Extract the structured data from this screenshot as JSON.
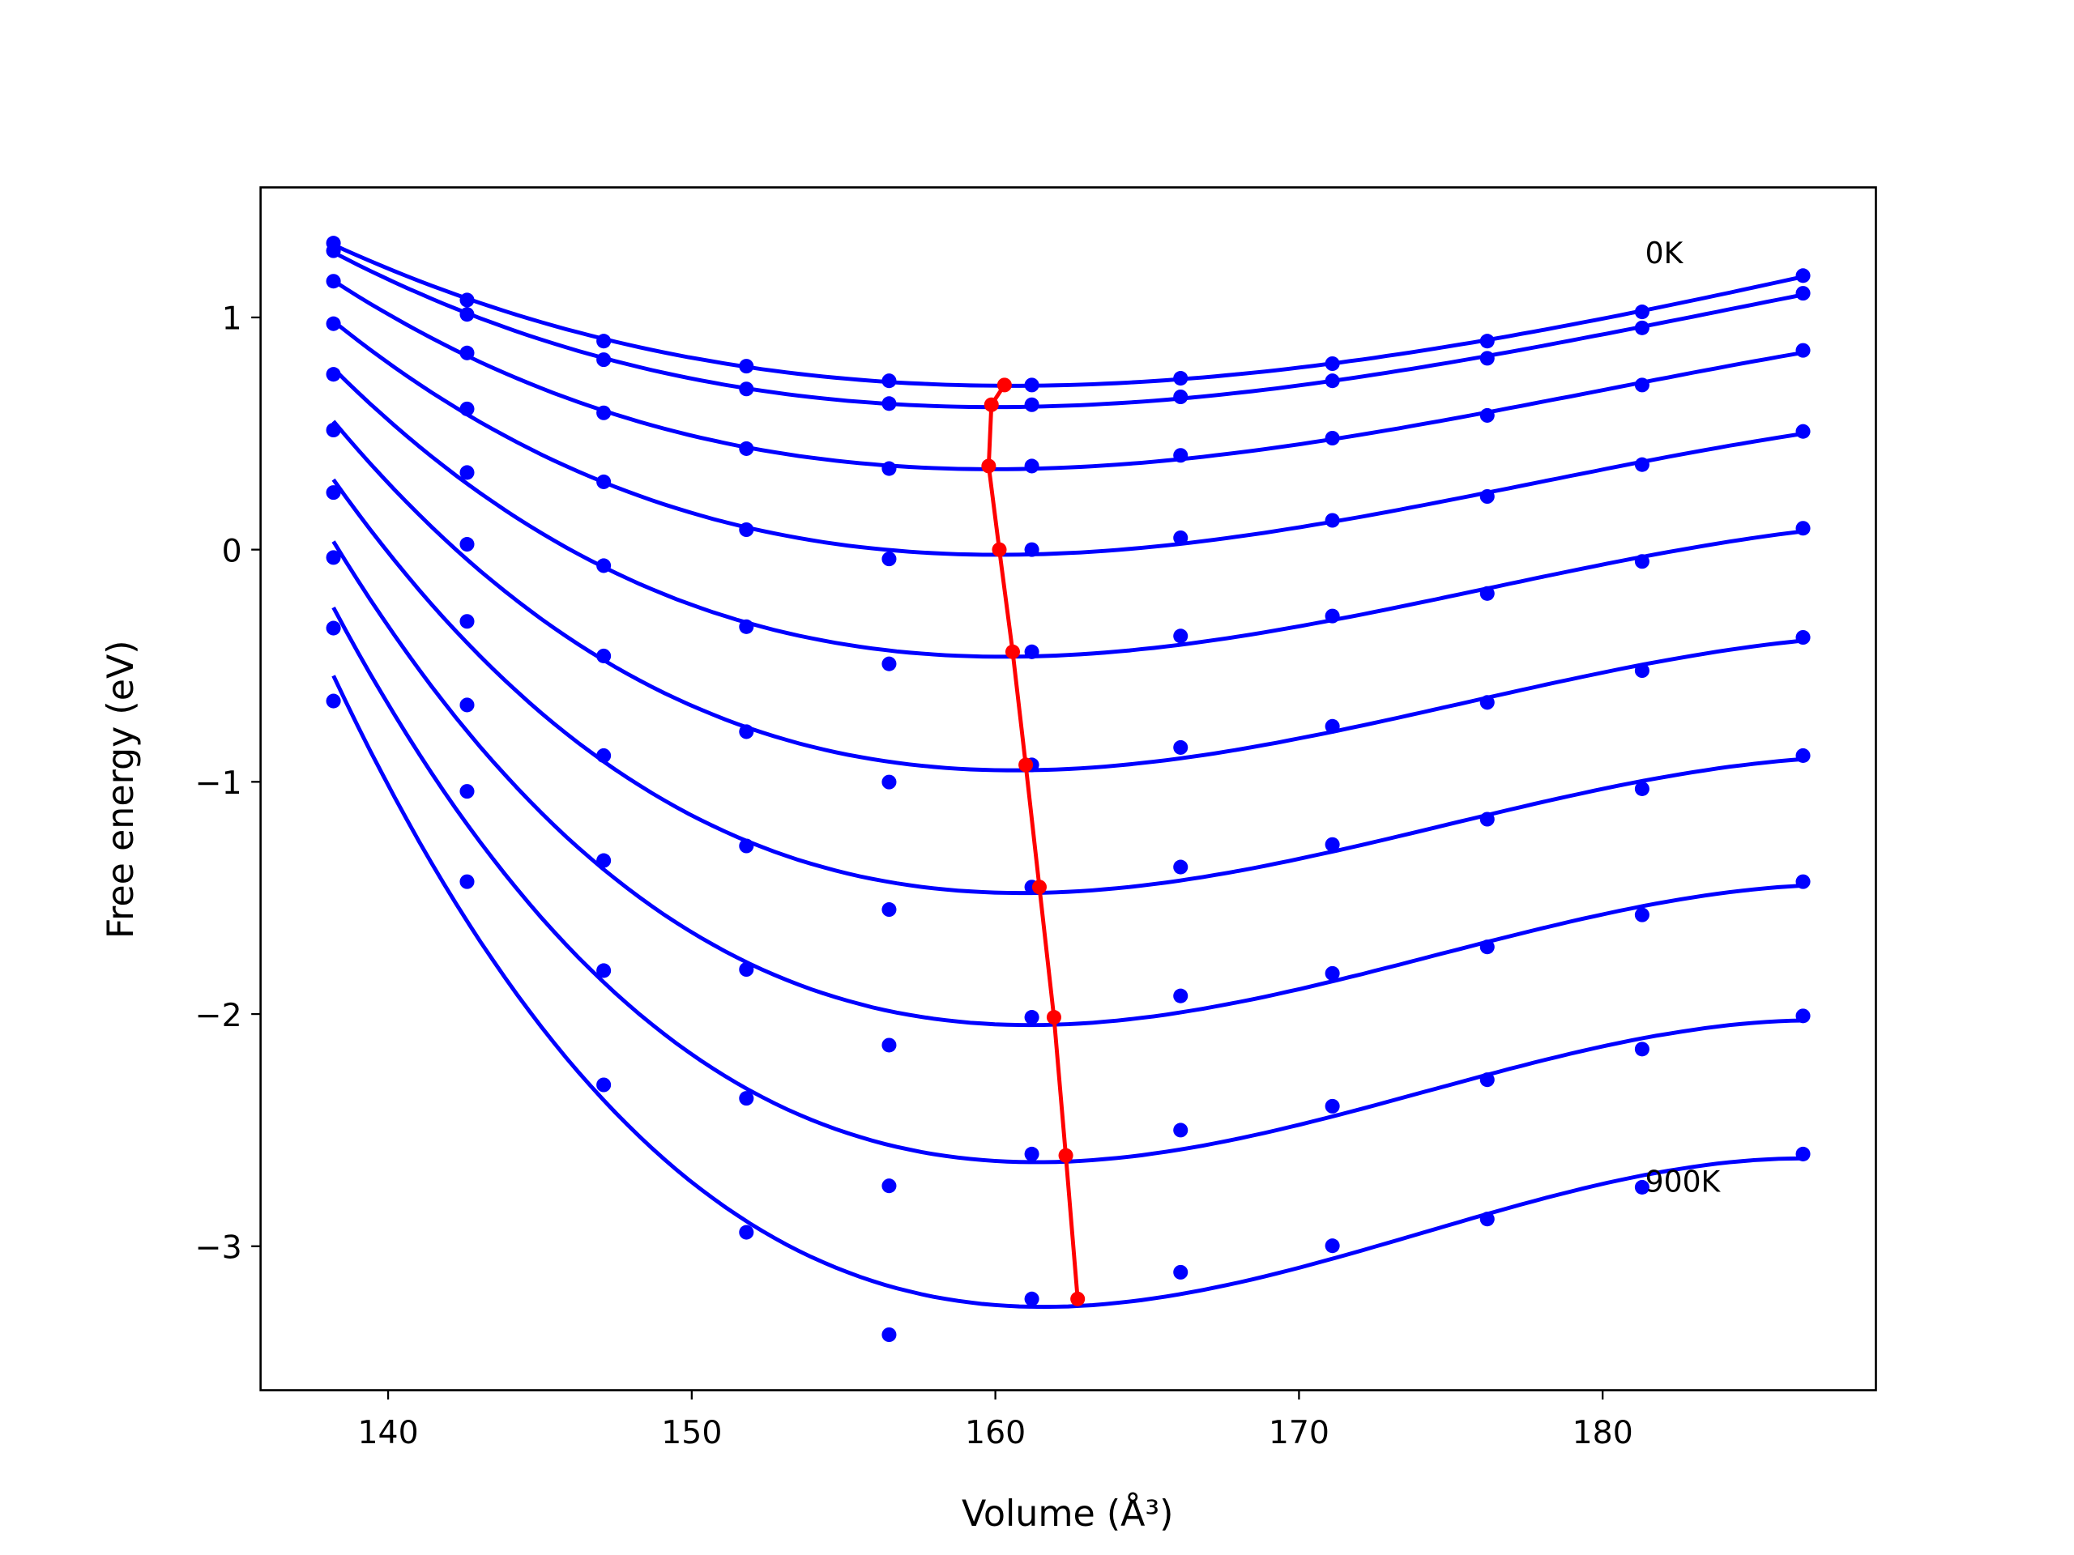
{
  "chart_data": {
    "type": "scatter",
    "title": "",
    "xlabel": "Volume (Å³)",
    "ylabel": "Free energy (eV)",
    "xlim": [
      135.8,
      189.0
    ],
    "ylim": [
      -3.62,
      1.56
    ],
    "xticks": [
      140,
      150,
      160,
      170,
      180
    ],
    "yticks": [
      -3,
      -2,
      -1,
      0,
      1
    ],
    "xtick_labels": [
      "140",
      "150",
      "160",
      "170",
      "180"
    ],
    "ytick_labels": [
      "−3",
      "−2",
      "−1",
      "0",
      "1"
    ],
    "grid": false,
    "colors": {
      "data": "#0000ff",
      "fit": "#0000ff",
      "minimum": "#ff0000"
    },
    "annotations": [
      {
        "text": "0K",
        "x": 181.4,
        "y": 1.28
      },
      {
        "text": "900K",
        "x": 181.4,
        "y": -2.72
      }
    ],
    "x": [
      138.2,
      142.6,
      147.1,
      151.8,
      156.5,
      161.2,
      166.1,
      171.1,
      176.2,
      181.3,
      186.6
    ],
    "series": [
      {
        "values": [
          1.32,
          1.075,
          0.898,
          0.79,
          0.727,
          0.709,
          0.738,
          0.801,
          0.898,
          1.024,
          1.18
        ]
      },
      {
        "values": [
          1.287,
          1.013,
          0.818,
          0.692,
          0.629,
          0.624,
          0.658,
          0.727,
          0.824,
          0.955,
          1.104
        ]
      },
      {
        "values": [
          1.156,
          0.847,
          0.589,
          0.435,
          0.349,
          0.36,
          0.406,
          0.48,
          0.578,
          0.709,
          0.858
        ]
      },
      {
        "values": [
          0.973,
          0.606,
          0.292,
          0.086,
          -0.04,
          0.0,
          0.051,
          0.126,
          0.229,
          0.366,
          0.509
        ]
      },
      {
        "values": [
          0.755,
          0.332,
          -0.069,
          -0.332,
          -0.492,
          -0.44,
          -0.372,
          -0.286,
          -0.189,
          -0.051,
          0.092
        ]
      },
      {
        "values": [
          0.515,
          0.023,
          -0.458,
          -0.784,
          -1.001,
          -0.927,
          -0.852,
          -0.761,
          -0.658,
          -0.521,
          -0.378
        ]
      },
      {
        "values": [
          0.246,
          -0.309,
          -0.887,
          -1.276,
          -1.55,
          -1.453,
          -1.367,
          -1.27,
          -1.161,
          -1.03,
          -0.887
        ]
      },
      {
        "values": [
          -0.034,
          -0.669,
          -1.339,
          -1.808,
          -2.134,
          -2.014,
          -1.922,
          -1.825,
          -1.711,
          -1.573,
          -1.43
        ]
      },
      {
        "values": [
          -0.338,
          -1.041,
          -1.813,
          -2.363,
          -2.74,
          -2.603,
          -2.5,
          -2.397,
          -2.283,
          -2.151,
          -2.008
        ]
      },
      {
        "values": [
          -0.652,
          -1.43,
          -2.305,
          -2.94,
          -3.381,
          -3.227,
          -3.112,
          -2.998,
          -2.883,
          -2.746,
          -2.603
        ]
      }
    ],
    "minimum_line": {
      "x": [
        160.3,
        159.87,
        159.78,
        160.13,
        160.57,
        161.0,
        161.45,
        161.93,
        162.32,
        162.71
      ],
      "y": [
        0.709,
        0.624,
        0.36,
        0.0,
        -0.44,
        -0.927,
        -1.453,
        -2.014,
        -2.609,
        -3.227
      ]
    }
  }
}
